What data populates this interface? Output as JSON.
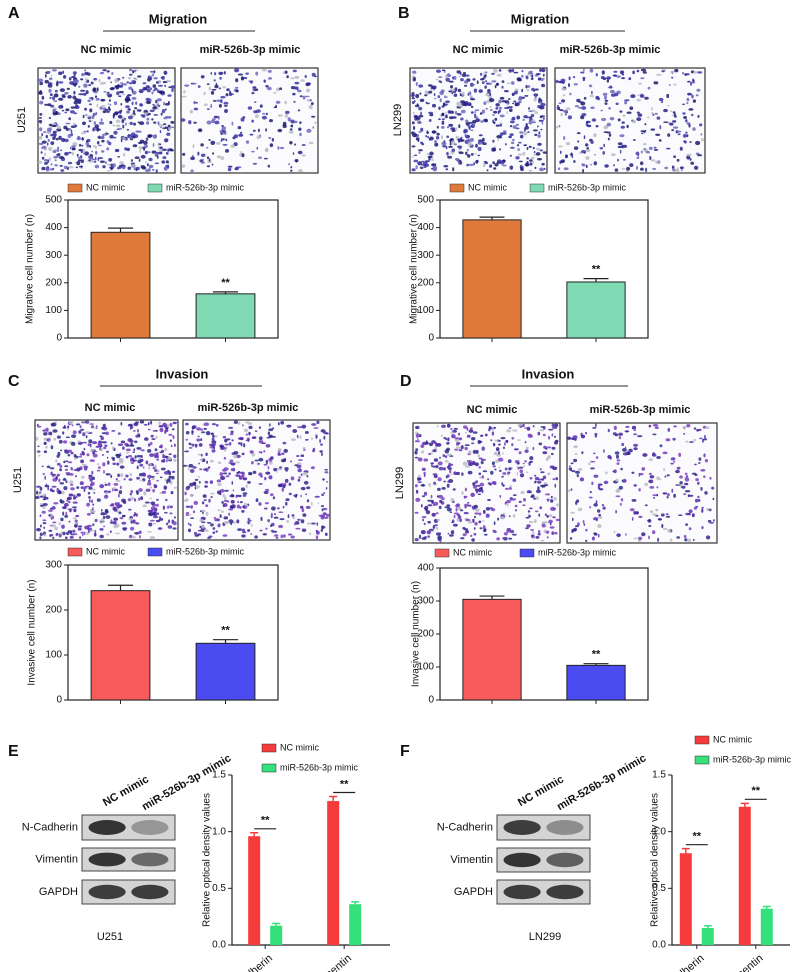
{
  "panels": [
    {
      "letter": "A",
      "heading": "Migration",
      "columns": [
        "NC mimic",
        "miR-526b-3p mimic"
      ],
      "cell_line": "U251"
    },
    {
      "letter": "B",
      "heading": "Migration",
      "columns": [
        "NC mimic",
        "miR-526b-3p mimic"
      ],
      "cell_line": "LN299"
    },
    {
      "letter": "C",
      "heading": "Invasion",
      "columns": [
        "NC mimic",
        "miR-526b-3p mimic"
      ],
      "cell_line": "U251"
    },
    {
      "letter": "D",
      "heading": "Invasion",
      "columns": [
        "NC mimic",
        "miR-526b-3p mimic"
      ],
      "cell_line": "LN299"
    },
    {
      "letter": "E",
      "columns": [
        "NC mimic",
        "miR-526b-3p mimic"
      ],
      "rows": [
        "N-Cadherin",
        "Vimentin",
        "GAPDH"
      ],
      "cell_line": "U251"
    },
    {
      "letter": "F",
      "columns": [
        "NC mimic",
        "miR-526b-3p mimic"
      ],
      "rows": [
        "N-Cadherin",
        "Vimentin",
        "GAPDH"
      ],
      "cell_line": "LN299"
    }
  ],
  "chart_data": [
    {
      "type": "bar",
      "ylabel": "Migrative cell number (n)",
      "legend": "top",
      "series": [
        {
          "name": "NC mimic",
          "color": "#e07a3a",
          "values": [
            383
          ],
          "errors": [
            15
          ]
        },
        {
          "name": "miR-526b-3p mimic",
          "color": "#7fd9b3",
          "values": [
            160
          ],
          "errors": [
            7
          ]
        }
      ],
      "annotations": [
        "**"
      ],
      "ylim": [
        0,
        500
      ],
      "yticks": [
        0,
        100,
        200,
        300,
        400,
        500
      ]
    },
    {
      "type": "bar",
      "ylabel": "Migrative cell number (n)",
      "legend": "top",
      "series": [
        {
          "name": "NC mimic",
          "color": "#e07a3a",
          "values": [
            428
          ],
          "errors": [
            10
          ]
        },
        {
          "name": "miR-526b-3p mimic",
          "color": "#7fd9b3",
          "values": [
            203
          ],
          "errors": [
            12
          ]
        }
      ],
      "annotations": [
        "**"
      ],
      "ylim": [
        0,
        500
      ],
      "yticks": [
        0,
        100,
        200,
        300,
        400,
        500
      ]
    },
    {
      "type": "bar",
      "ylabel": "Invasive cell number (n)",
      "legend": "top",
      "series": [
        {
          "name": "NC mimic",
          "color": "#f75b5b",
          "values": [
            243
          ],
          "errors": [
            12
          ]
        },
        {
          "name": "miR-526b-3p mimic",
          "color": "#4b4bf2",
          "values": [
            126
          ],
          "errors": [
            8
          ]
        }
      ],
      "annotations": [
        "**"
      ],
      "ylim": [
        0,
        300
      ],
      "yticks": [
        0,
        100,
        200,
        300
      ]
    },
    {
      "type": "bar",
      "ylabel": "Invasive cell number (n)",
      "legend": "top",
      "series": [
        {
          "name": "NC mimic",
          "color": "#f75b5b",
          "values": [
            305
          ],
          "errors": [
            10
          ]
        },
        {
          "name": "miR-526b-3p mimic",
          "color": "#4b4bf2",
          "values": [
            105
          ],
          "errors": [
            5
          ]
        }
      ],
      "annotations": [
        "**"
      ],
      "ylim": [
        0,
        400
      ],
      "yticks": [
        0,
        100,
        200,
        300,
        400
      ]
    },
    {
      "type": "grouped-bar",
      "ylabel": "Relative optical density values",
      "legend": "top",
      "categories": [
        "N-Cadherin",
        "Vimentin"
      ],
      "series": [
        {
          "name": "NC mimic",
          "color": "#f53b3b",
          "values": [
            0.96,
            1.27
          ],
          "errors": [
            0.03,
            0.04
          ]
        },
        {
          "name": "miR-526b-3p mimic",
          "color": "#33e07a",
          "values": [
            0.17,
            0.36
          ],
          "errors": [
            0.02,
            0.02
          ]
        }
      ],
      "annotations": [
        "**",
        "**"
      ],
      "ylim": [
        0,
        1.5
      ],
      "yticks": [
        {
          "value": 0,
          "label": "0.0"
        },
        0.5,
        {
          "value": 1,
          "label": "1.0"
        },
        1.5
      ]
    },
    {
      "type": "grouped-bar",
      "ylabel": "Relative optical density values",
      "legend": "top",
      "categories": [
        "N-Cadherin",
        "Vimentin"
      ],
      "series": [
        {
          "name": "NC mimic",
          "color": "#f53b3b",
          "values": [
            0.81,
            1.22
          ],
          "errors": [
            0.04,
            0.03
          ]
        },
        {
          "name": "miR-526b-3p mimic",
          "color": "#33e07a",
          "values": [
            0.15,
            0.32
          ],
          "errors": [
            0.02,
            0.02
          ]
        }
      ],
      "annotations": [
        "**",
        "**"
      ],
      "ylim": [
        0,
        1.5
      ],
      "yticks": [
        {
          "value": 0,
          "label": "0.0"
        },
        0.5,
        {
          "value": 1,
          "label": "1.0"
        },
        1.5
      ]
    }
  ]
}
